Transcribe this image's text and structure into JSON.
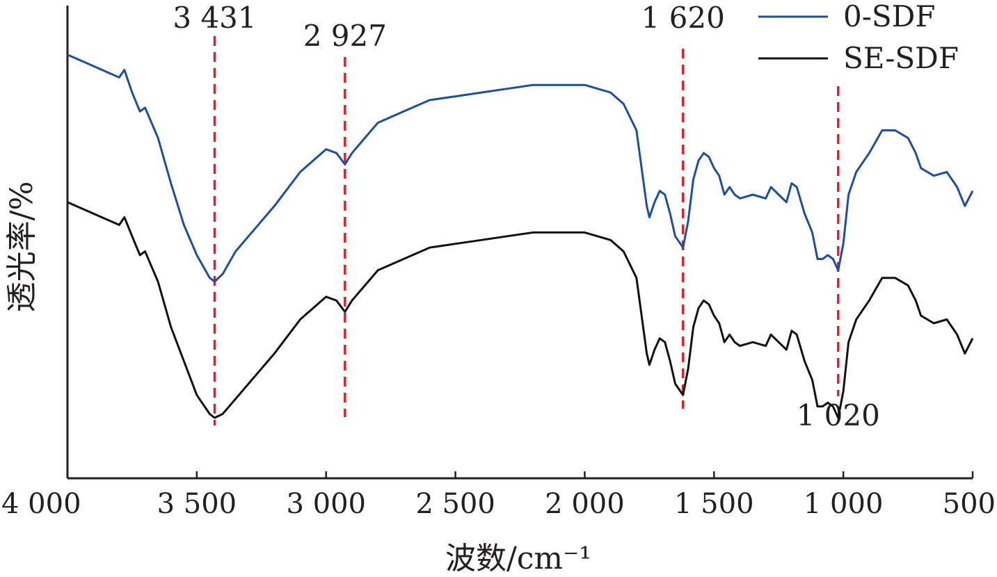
{
  "chart_data": {
    "type": "line",
    "xlabel": "波数/cm⁻¹",
    "ylabel": "透光率/%",
    "xlim": [
      4000,
      500
    ],
    "x_reversed": true,
    "y_units": "relative transmittance (no numeric ticks shown)",
    "xticks": [
      4000,
      3500,
      3000,
      2500,
      2000,
      1500,
      1000,
      500
    ],
    "xtick_labels": [
      "4 000",
      "3 500",
      "3 000",
      "2 500",
      "2 000",
      "1 500",
      "1 000",
      "500"
    ],
    "legend_position": "top-right",
    "grid": false,
    "annotations": [
      {
        "x": 3431,
        "label": "3 431",
        "label_side": "top"
      },
      {
        "x": 2927,
        "label": "2 927",
        "label_side": "top"
      },
      {
        "x": 1620,
        "label": "1 620",
        "label_side": "top"
      },
      {
        "x": 1020,
        "label": "1 020",
        "label_side": "bottom"
      }
    ],
    "annotation_color": "#e0202b",
    "series": [
      {
        "name": "0-SDF",
        "color": "#1f4e9e",
        "points": [
          [
            4000,
            92
          ],
          [
            3900,
            89
          ],
          [
            3800,
            86
          ],
          [
            3780,
            88
          ],
          [
            3750,
            82
          ],
          [
            3720,
            77
          ],
          [
            3700,
            78
          ],
          [
            3650,
            70
          ],
          [
            3600,
            58
          ],
          [
            3550,
            47
          ],
          [
            3500,
            39
          ],
          [
            3450,
            33
          ],
          [
            3431,
            32
          ],
          [
            3400,
            34
          ],
          [
            3350,
            40
          ],
          [
            3300,
            44
          ],
          [
            3200,
            52
          ],
          [
            3100,
            61
          ],
          [
            3000,
            67
          ],
          [
            2960,
            66
          ],
          [
            2927,
            63
          ],
          [
            2900,
            66
          ],
          [
            2850,
            70
          ],
          [
            2800,
            74
          ],
          [
            2700,
            77
          ],
          [
            2600,
            80
          ],
          [
            2500,
            81
          ],
          [
            2400,
            82
          ],
          [
            2300,
            83
          ],
          [
            2200,
            84
          ],
          [
            2100,
            84
          ],
          [
            2000,
            84
          ],
          [
            1900,
            82
          ],
          [
            1850,
            79
          ],
          [
            1800,
            72
          ],
          [
            1780,
            62
          ],
          [
            1760,
            52
          ],
          [
            1750,
            49
          ],
          [
            1730,
            53
          ],
          [
            1710,
            56
          ],
          [
            1690,
            55
          ],
          [
            1670,
            50
          ],
          [
            1650,
            44
          ],
          [
            1630,
            42
          ],
          [
            1620,
            41
          ],
          [
            1600,
            48
          ],
          [
            1580,
            59
          ],
          [
            1560,
            64
          ],
          [
            1540,
            66
          ],
          [
            1520,
            65
          ],
          [
            1500,
            62
          ],
          [
            1480,
            60
          ],
          [
            1460,
            55
          ],
          [
            1440,
            57
          ],
          [
            1420,
            55
          ],
          [
            1400,
            54
          ],
          [
            1350,
            55
          ],
          [
            1300,
            54
          ],
          [
            1280,
            57
          ],
          [
            1250,
            55
          ],
          [
            1220,
            53
          ],
          [
            1200,
            58
          ],
          [
            1180,
            57
          ],
          [
            1150,
            50
          ],
          [
            1120,
            45
          ],
          [
            1100,
            38
          ],
          [
            1080,
            38
          ],
          [
            1060,
            39
          ],
          [
            1040,
            38
          ],
          [
            1020,
            35
          ],
          [
            1000,
            42
          ],
          [
            980,
            55
          ],
          [
            950,
            61
          ],
          [
            900,
            66
          ],
          [
            850,
            72
          ],
          [
            800,
            72
          ],
          [
            750,
            70
          ],
          [
            720,
            66
          ],
          [
            700,
            62
          ],
          [
            650,
            60
          ],
          [
            600,
            61
          ],
          [
            560,
            57
          ],
          [
            530,
            52
          ],
          [
            500,
            56
          ]
        ]
      },
      {
        "name": "SE-SDF",
        "color": "#111111",
        "points": [
          [
            4000,
            53
          ],
          [
            3900,
            50
          ],
          [
            3800,
            47
          ],
          [
            3780,
            49
          ],
          [
            3750,
            44
          ],
          [
            3720,
            39
          ],
          [
            3700,
            40
          ],
          [
            3650,
            32
          ],
          [
            3600,
            20
          ],
          [
            3550,
            11
          ],
          [
            3500,
            2
          ],
          [
            3450,
            -3
          ],
          [
            3431,
            -4
          ],
          [
            3400,
            -3
          ],
          [
            3350,
            1
          ],
          [
            3300,
            5
          ],
          [
            3200,
            13
          ],
          [
            3100,
            22
          ],
          [
            3000,
            28
          ],
          [
            2960,
            27
          ],
          [
            2927,
            24
          ],
          [
            2900,
            27
          ],
          [
            2850,
            31
          ],
          [
            2800,
            35
          ],
          [
            2700,
            38
          ],
          [
            2600,
            41
          ],
          [
            2500,
            42
          ],
          [
            2400,
            43
          ],
          [
            2300,
            44
          ],
          [
            2200,
            45
          ],
          [
            2100,
            45
          ],
          [
            2000,
            45
          ],
          [
            1900,
            43
          ],
          [
            1850,
            40
          ],
          [
            1800,
            33
          ],
          [
            1780,
            23
          ],
          [
            1760,
            13
          ],
          [
            1750,
            10
          ],
          [
            1730,
            14
          ],
          [
            1710,
            17
          ],
          [
            1690,
            16
          ],
          [
            1670,
            11
          ],
          [
            1650,
            5
          ],
          [
            1630,
            3
          ],
          [
            1620,
            2
          ],
          [
            1600,
            9
          ],
          [
            1580,
            20
          ],
          [
            1560,
            25
          ],
          [
            1540,
            27
          ],
          [
            1520,
            26
          ],
          [
            1500,
            23
          ],
          [
            1480,
            21
          ],
          [
            1460,
            16
          ],
          [
            1440,
            18
          ],
          [
            1420,
            16
          ],
          [
            1400,
            15
          ],
          [
            1350,
            16
          ],
          [
            1300,
            15
          ],
          [
            1280,
            18
          ],
          [
            1250,
            16
          ],
          [
            1220,
            14
          ],
          [
            1200,
            19
          ],
          [
            1180,
            18
          ],
          [
            1150,
            11
          ],
          [
            1120,
            6
          ],
          [
            1100,
            -1
          ],
          [
            1080,
            -1
          ],
          [
            1060,
            0
          ],
          [
            1040,
            -1
          ],
          [
            1020,
            -4
          ],
          [
            1000,
            3
          ],
          [
            980,
            16
          ],
          [
            950,
            22
          ],
          [
            900,
            27
          ],
          [
            850,
            33
          ],
          [
            800,
            33
          ],
          [
            750,
            31
          ],
          [
            720,
            27
          ],
          [
            700,
            23
          ],
          [
            650,
            21
          ],
          [
            600,
            22
          ],
          [
            560,
            18
          ],
          [
            530,
            13
          ],
          [
            500,
            17
          ]
        ]
      }
    ]
  }
}
